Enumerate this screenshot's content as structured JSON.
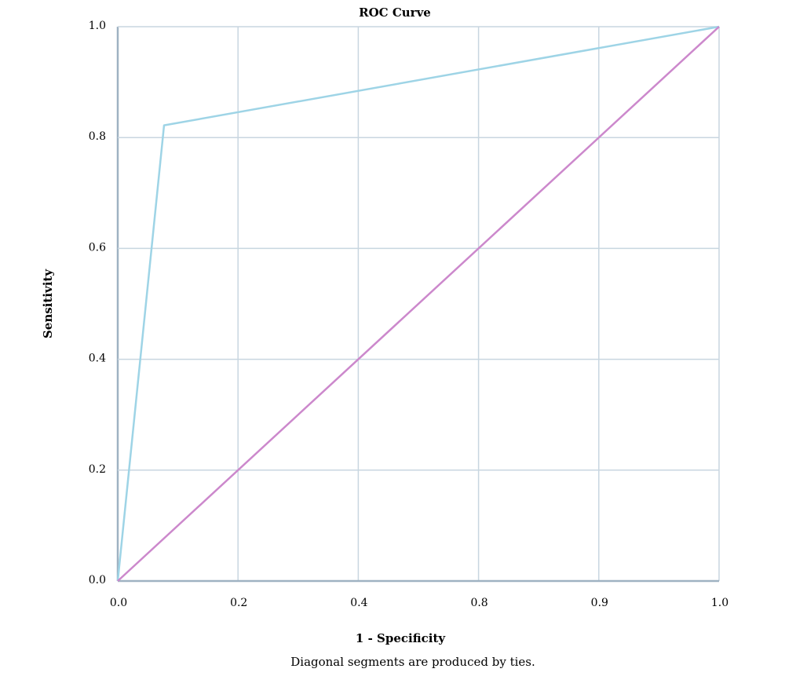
{
  "chart_data": {
    "type": "line",
    "title": "ROC Curve",
    "xlabel": "1 - Specificity",
    "ylabel": "Sensitivity",
    "footnote": "Diagonal segments are produced by ties.",
    "xlim": [
      0,
      1
    ],
    "ylim": [
      0,
      1
    ],
    "grid": true,
    "x_ticks": [
      "0.0",
      "0.2",
      "0.4",
      "0.8",
      "0.9",
      "1.0"
    ],
    "y_ticks": [
      "0.0",
      "0.2",
      "0.4",
      "0.6",
      "0.8",
      "1.0"
    ],
    "series": [
      {
        "color": "#9ed4e6",
        "x": [
          0.0,
          0.077,
          1.0
        ],
        "y": [
          0.0,
          0.822,
          1.0
        ]
      },
      {
        "color": "#cc88cc",
        "x": [
          0.0,
          1.0
        ],
        "y": [
          0.0,
          1.0
        ]
      }
    ],
    "colors": {
      "grid": "#c8d6e0",
      "axis": "#9fb2c2"
    }
  }
}
